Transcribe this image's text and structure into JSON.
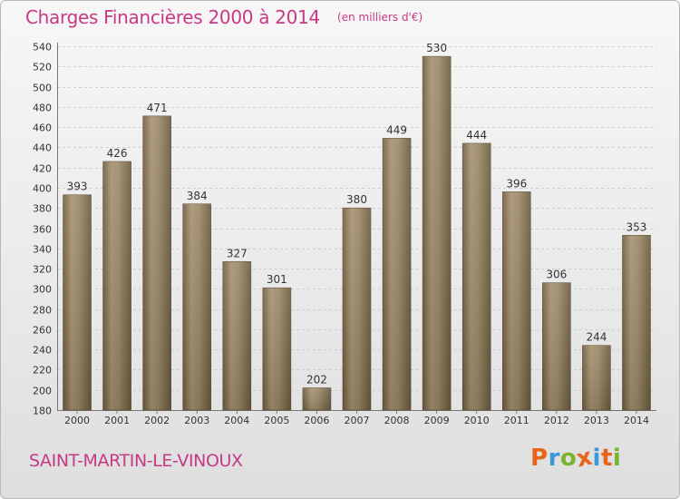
{
  "header": {
    "title": "Charges Financières 2000 à 2014",
    "unit": "(en milliers d'€)"
  },
  "footer": {
    "place": "SAINT-MARTIN-LE-VINOUX",
    "logo_text": "Proxiti",
    "logo_colors": [
      "#e8641b",
      "#3a9ad9",
      "#7ab32e",
      "#e8641b",
      "#3a9ad9",
      "#e8641b",
      "#7ab32e"
    ]
  },
  "chart_data": {
    "type": "bar",
    "categories": [
      "2000",
      "2001",
      "2002",
      "2003",
      "2004",
      "2005",
      "2006",
      "2007",
      "2008",
      "2009",
      "2010",
      "2011",
      "2012",
      "2013",
      "2014"
    ],
    "values": [
      393,
      426,
      471,
      384,
      327,
      301,
      202,
      380,
      449,
      530,
      444,
      396,
      306,
      244,
      353
    ],
    "ylim": [
      180,
      540
    ],
    "ytick_step": 20,
    "grid": true,
    "bar_color": "#8b7656"
  }
}
